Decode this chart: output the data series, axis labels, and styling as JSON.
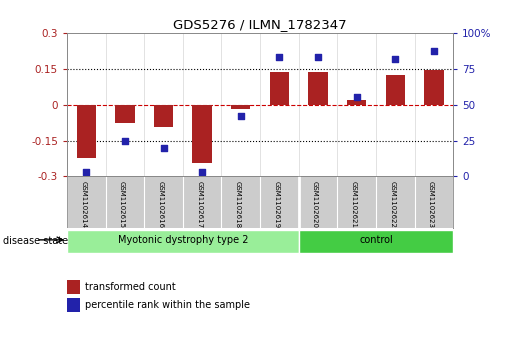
{
  "title": "GDS5276 / ILMN_1782347",
  "samples": [
    "GSM1102614",
    "GSM1102615",
    "GSM1102616",
    "GSM1102617",
    "GSM1102618",
    "GSM1102619",
    "GSM1102620",
    "GSM1102621",
    "GSM1102622",
    "GSM1102623"
  ],
  "bar_values": [
    -0.225,
    -0.075,
    -0.095,
    -0.245,
    -0.02,
    0.135,
    0.135,
    0.02,
    0.125,
    0.143
  ],
  "dot_values": [
    3,
    25,
    20,
    3,
    42,
    83,
    83,
    55,
    82,
    87
  ],
  "bar_color": "#aa2222",
  "dot_color": "#2222aa",
  "ylim_left": [
    -0.3,
    0.3
  ],
  "ylim_right": [
    0,
    100
  ],
  "yticks_left": [
    -0.3,
    -0.15,
    0,
    0.15,
    0.3
  ],
  "yticks_right": [
    0,
    25,
    50,
    75,
    100
  ],
  "ytick_labels_left": [
    "-0.3",
    "-0.15",
    "0",
    "0.15",
    "0.3"
  ],
  "ytick_labels_right": [
    "0",
    "25",
    "50",
    "75",
    "100%"
  ],
  "hlines": [
    0.15,
    0,
    -0.15
  ],
  "hline_styles": [
    "dotted",
    "dashed",
    "dotted"
  ],
  "hline_colors": [
    "black",
    "#cc0000",
    "black"
  ],
  "disease_groups": [
    {
      "label": "Myotonic dystrophy type 2",
      "start": 0,
      "end": 6,
      "color": "#99ee99"
    },
    {
      "label": "control",
      "start": 6,
      "end": 10,
      "color": "#44cc44"
    }
  ],
  "disease_state_label": "disease state",
  "legend_bar_label": "transformed count",
  "legend_dot_label": "percentile rank within the sample",
  "bar_width": 0.5,
  "dot_size": 25,
  "background_color": "#ffffff",
  "plot_bg_color": "#ffffff",
  "tick_area_bg": "#cccccc"
}
